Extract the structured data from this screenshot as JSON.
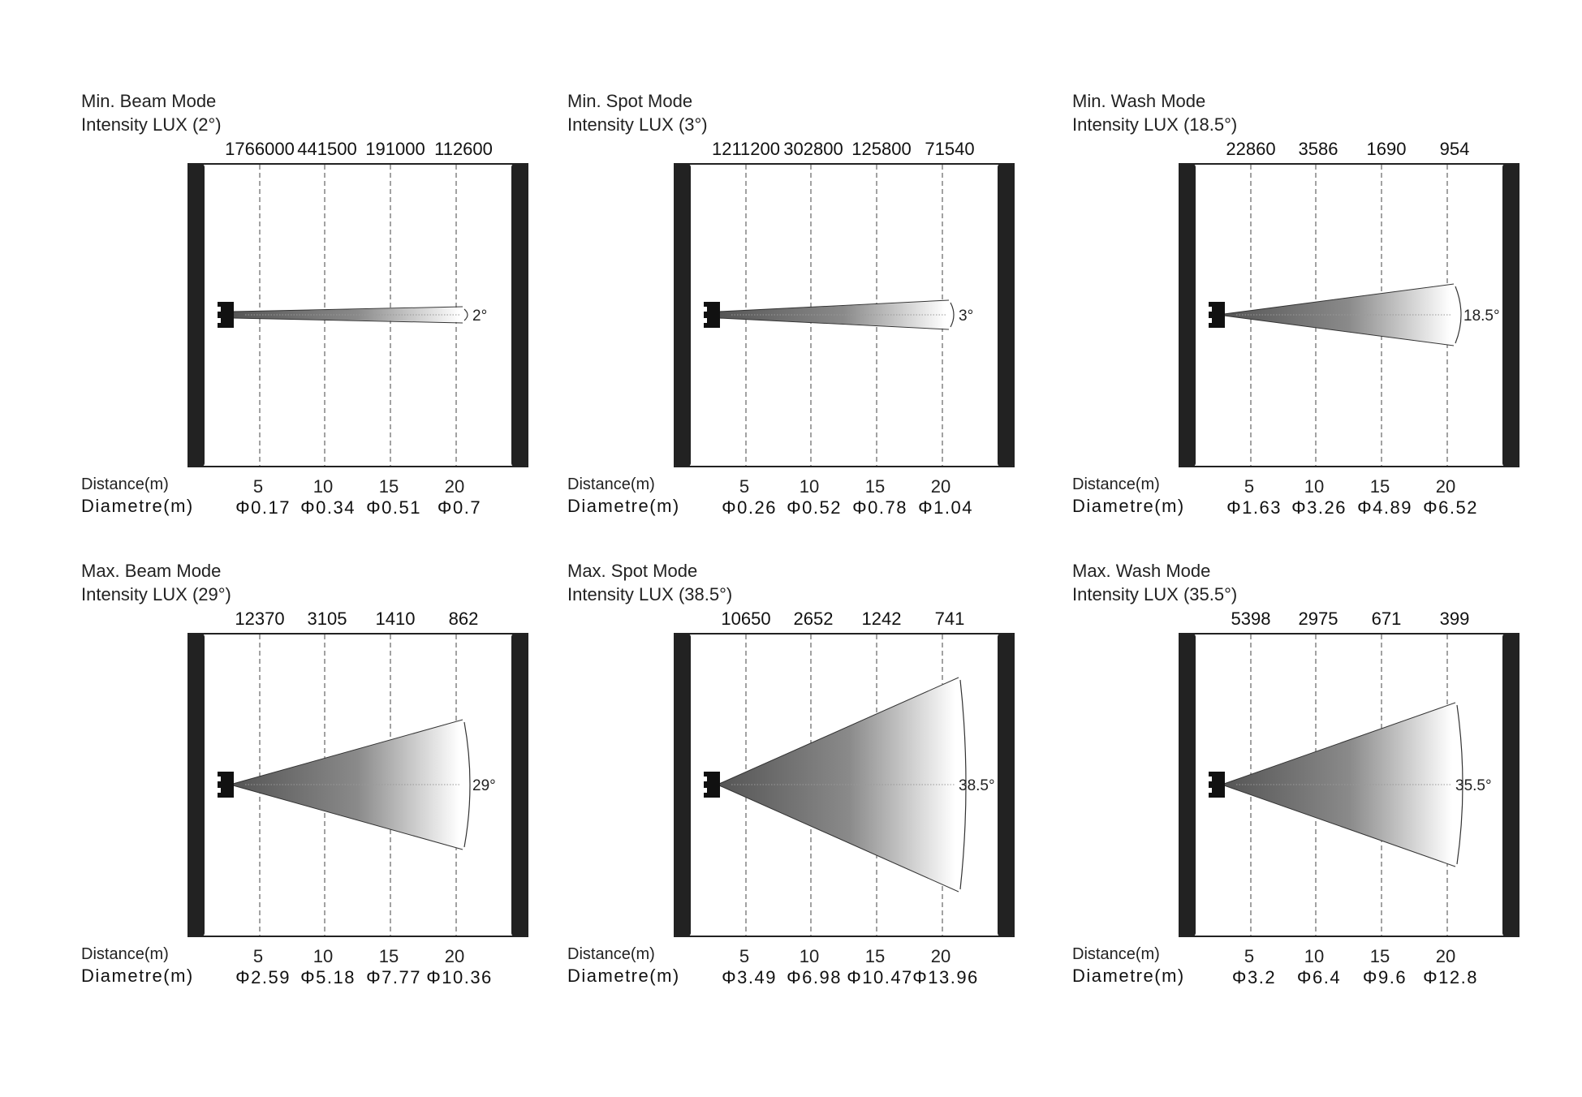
{
  "chart_data": [
    {
      "type": "diagram",
      "title": "Min. Beam Mode",
      "subtitle": "Intensity LUX (2°)",
      "beam_angle_deg": 2,
      "angle_label": "2°",
      "distance_label": "Distance(m)",
      "diameter_label": "Diametre(m)",
      "distances": [
        "5",
        "10",
        "15",
        "20"
      ],
      "lux": [
        "1766000",
        "441500",
        "191000",
        "112600"
      ],
      "diameters": [
        "Φ0.17",
        "Φ0.34",
        "Φ0.51",
        "Φ0.7"
      ]
    },
    {
      "type": "diagram",
      "title": "Min. Spot Mode",
      "subtitle": "Intensity LUX (3°)",
      "beam_angle_deg": 3,
      "angle_label": "3°",
      "distance_label": "Distance(m)",
      "diameter_label": "Diametre(m)",
      "distances": [
        "5",
        "10",
        "15",
        "20"
      ],
      "lux": [
        "1211200",
        "302800",
        "125800",
        "71540"
      ],
      "diameters": [
        "Φ0.26",
        "Φ0.52",
        "Φ0.78",
        "Φ1.04"
      ]
    },
    {
      "type": "diagram",
      "title": "Min. Wash Mode",
      "subtitle": "Intensity LUX (18.5°)",
      "beam_angle_deg": 18.5,
      "angle_label": "18.5°",
      "distance_label": "Distance(m)",
      "diameter_label": "Diametre(m)",
      "distances": [
        "5",
        "10",
        "15",
        "20"
      ],
      "lux": [
        "22860",
        "3586",
        "1690",
        "954"
      ],
      "diameters": [
        "Φ1.63",
        "Φ3.26",
        "Φ4.89",
        "Φ6.52"
      ]
    },
    {
      "type": "diagram",
      "title": "Max. Beam Mode",
      "subtitle": "Intensity LUX (29°)",
      "beam_angle_deg": 29,
      "angle_label": "29°",
      "distance_label": "Distance(m)",
      "diameter_label": "Diametre(m)",
      "distances": [
        "5",
        "10",
        "15",
        "20"
      ],
      "lux": [
        "12370",
        "3105",
        "1410",
        "862"
      ],
      "diameters": [
        "Φ2.59",
        "Φ5.18",
        "Φ7.77",
        "Φ10.36"
      ]
    },
    {
      "type": "diagram",
      "title": "Max. Spot Mode",
      "subtitle": "Intensity LUX (38.5°)",
      "beam_angle_deg": 38.5,
      "angle_label": "38.5°",
      "distance_label": "Distance(m)",
      "diameter_label": "Diametre(m)",
      "distances": [
        "5",
        "10",
        "15",
        "20"
      ],
      "lux": [
        "10650",
        "2652",
        "1242",
        "741"
      ],
      "diameters": [
        "Φ3.49",
        "Φ6.98",
        "Φ10.47",
        "Φ13.96"
      ]
    },
    {
      "type": "diagram",
      "title": "Max. Wash Mode",
      "subtitle": "Intensity LUX (35.5°)",
      "beam_angle_deg": 35.5,
      "angle_label": "35.5°",
      "distance_label": "Distance(m)",
      "diameter_label": "Diametre(m)",
      "distances": [
        "5",
        "10",
        "15",
        "20"
      ],
      "lux": [
        "5398",
        "2975",
        "671",
        "399"
      ],
      "diameters": [
        "Φ3.2",
        "Φ6.4",
        "Φ9.6",
        "Φ12.8"
      ]
    }
  ],
  "colors": {
    "frame": "#222222",
    "beam_start": "#555555",
    "beam_end": "#ffffff"
  }
}
